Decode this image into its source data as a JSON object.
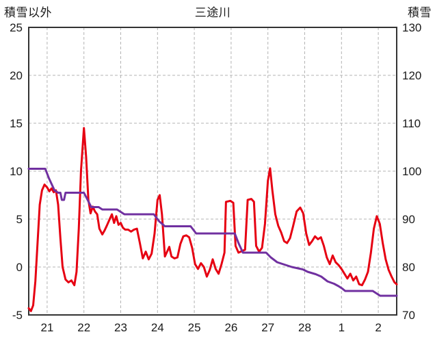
{
  "chart_data": {
    "type": "line",
    "title": "三途川",
    "x_axis": {
      "range": [
        0,
        10
      ],
      "tick_positions": [
        0.5,
        1.5,
        2.5,
        3.5,
        4.5,
        5.5,
        6.5,
        7.5,
        8.5,
        9.5
      ],
      "tick_labels": [
        "21",
        "22",
        "23",
        "24",
        "25",
        "26",
        "27",
        "28",
        "1",
        "2"
      ]
    },
    "left_axis": {
      "label": "積雪以外",
      "range": [
        -5,
        25
      ],
      "ticks": [
        -5,
        0,
        5,
        10,
        15,
        20,
        25
      ]
    },
    "right_axis": {
      "label": "積雪",
      "range": [
        70,
        130
      ],
      "ticks": [
        70,
        80,
        90,
        100,
        110,
        120,
        130
      ]
    },
    "colors": {
      "grid": "#b3b3b3",
      "frame": "#333333",
      "red_series": "#e60012",
      "purple_series": "#7030a0",
      "text": "#1a1a1a"
    },
    "grid": true,
    "legend": "none",
    "series": [
      {
        "name": "積雪以外",
        "axis": "left",
        "color": "#e60012",
        "points": [
          [
            0.0,
            -4.3
          ],
          [
            0.06,
            -4.6
          ],
          [
            0.12,
            -4.0
          ],
          [
            0.18,
            -1.5
          ],
          [
            0.24,
            2.5
          ],
          [
            0.3,
            6.5
          ],
          [
            0.36,
            8.0
          ],
          [
            0.43,
            8.6
          ],
          [
            0.5,
            8.3
          ],
          [
            0.56,
            7.9
          ],
          [
            0.62,
            8.2
          ],
          [
            0.68,
            7.8
          ],
          [
            0.74,
            8.0
          ],
          [
            0.8,
            6.5
          ],
          [
            0.86,
            3.0
          ],
          [
            0.92,
            0.0
          ],
          [
            1.0,
            -1.3
          ],
          [
            1.08,
            -1.6
          ],
          [
            1.16,
            -1.4
          ],
          [
            1.24,
            -1.9
          ],
          [
            1.3,
            -0.5
          ],
          [
            1.36,
            4.0
          ],
          [
            1.42,
            10.0
          ],
          [
            1.5,
            14.5
          ],
          [
            1.56,
            11.5
          ],
          [
            1.62,
            7.0
          ],
          [
            1.68,
            5.6
          ],
          [
            1.74,
            6.3
          ],
          [
            1.8,
            5.8
          ],
          [
            1.86,
            5.5
          ],
          [
            1.92,
            4.0
          ],
          [
            2.0,
            3.4
          ],
          [
            2.06,
            3.8
          ],
          [
            2.12,
            4.3
          ],
          [
            2.2,
            5.0
          ],
          [
            2.26,
            5.5
          ],
          [
            2.32,
            4.6
          ],
          [
            2.38,
            5.3
          ],
          [
            2.44,
            4.4
          ],
          [
            2.5,
            4.6
          ],
          [
            2.56,
            4.1
          ],
          [
            2.62,
            3.9
          ],
          [
            2.7,
            3.9
          ],
          [
            2.78,
            3.7
          ],
          [
            2.86,
            3.9
          ],
          [
            2.94,
            4.0
          ],
          [
            3.02,
            2.5
          ],
          [
            3.1,
            0.9
          ],
          [
            3.18,
            1.6
          ],
          [
            3.26,
            0.8
          ],
          [
            3.34,
            1.4
          ],
          [
            3.42,
            3.5
          ],
          [
            3.5,
            7.0
          ],
          [
            3.56,
            7.5
          ],
          [
            3.62,
            5.5
          ],
          [
            3.7,
            1.1
          ],
          [
            3.76,
            1.6
          ],
          [
            3.82,
            2.1
          ],
          [
            3.88,
            1.1
          ],
          [
            3.96,
            0.9
          ],
          [
            4.04,
            1.0
          ],
          [
            4.12,
            2.4
          ],
          [
            4.2,
            3.2
          ],
          [
            4.28,
            3.3
          ],
          [
            4.36,
            3.1
          ],
          [
            4.44,
            2.0
          ],
          [
            4.52,
            0.3
          ],
          [
            4.6,
            -0.2
          ],
          [
            4.68,
            0.4
          ],
          [
            4.76,
            0.0
          ],
          [
            4.84,
            -1.0
          ],
          [
            4.92,
            -0.3
          ],
          [
            5.0,
            0.8
          ],
          [
            5.08,
            -0.2
          ],
          [
            5.16,
            -0.7
          ],
          [
            5.24,
            0.3
          ],
          [
            5.32,
            1.5
          ],
          [
            5.36,
            6.8
          ],
          [
            5.48,
            6.9
          ],
          [
            5.56,
            6.7
          ],
          [
            5.62,
            2.2
          ],
          [
            5.7,
            1.5
          ],
          [
            5.88,
            1.8
          ],
          [
            5.95,
            7.0
          ],
          [
            6.05,
            7.1
          ],
          [
            6.12,
            6.8
          ],
          [
            6.18,
            2.2
          ],
          [
            6.26,
            1.6
          ],
          [
            6.34,
            2.0
          ],
          [
            6.42,
            4.5
          ],
          [
            6.5,
            9.0
          ],
          [
            6.56,
            10.3
          ],
          [
            6.62,
            8.0
          ],
          [
            6.7,
            5.5
          ],
          [
            6.78,
            4.3
          ],
          [
            6.86,
            3.6
          ],
          [
            6.94,
            2.7
          ],
          [
            7.02,
            2.5
          ],
          [
            7.1,
            3.0
          ],
          [
            7.18,
            4.2
          ],
          [
            7.28,
            5.8
          ],
          [
            7.38,
            6.2
          ],
          [
            7.46,
            5.6
          ],
          [
            7.54,
            3.5
          ],
          [
            7.62,
            2.3
          ],
          [
            7.7,
            2.7
          ],
          [
            7.78,
            3.2
          ],
          [
            7.86,
            2.9
          ],
          [
            7.94,
            3.1
          ],
          [
            8.02,
            2.2
          ],
          [
            8.1,
            1.0
          ],
          [
            8.18,
            0.3
          ],
          [
            8.26,
            1.2
          ],
          [
            8.34,
            0.5
          ],
          [
            8.42,
            0.2
          ],
          [
            8.5,
            -0.2
          ],
          [
            8.58,
            -0.7
          ],
          [
            8.66,
            -1.2
          ],
          [
            8.74,
            -0.7
          ],
          [
            8.82,
            -1.4
          ],
          [
            8.9,
            -1.0
          ],
          [
            8.98,
            -1.8
          ],
          [
            9.06,
            -1.9
          ],
          [
            9.14,
            -1.3
          ],
          [
            9.22,
            -0.5
          ],
          [
            9.3,
            1.5
          ],
          [
            9.38,
            4.0
          ],
          [
            9.46,
            5.3
          ],
          [
            9.54,
            4.5
          ],
          [
            9.62,
            2.5
          ],
          [
            9.7,
            0.8
          ],
          [
            9.78,
            -0.3
          ],
          [
            9.86,
            -1.0
          ],
          [
            9.94,
            -1.6
          ],
          [
            10.0,
            -1.8
          ]
        ]
      },
      {
        "name": "積雪",
        "axis": "right",
        "color": "#7030a0",
        "points": [
          [
            0.0,
            100.5
          ],
          [
            0.45,
            100.5
          ],
          [
            0.55,
            98.5
          ],
          [
            0.7,
            96.0
          ],
          [
            0.8,
            95.5
          ],
          [
            0.86,
            95.5
          ],
          [
            0.9,
            94.0
          ],
          [
            0.96,
            94.0
          ],
          [
            1.0,
            95.5
          ],
          [
            1.5,
            95.5
          ],
          [
            1.6,
            94.0
          ],
          [
            1.7,
            92.5
          ],
          [
            1.9,
            92.5
          ],
          [
            2.0,
            92.0
          ],
          [
            2.4,
            92.0
          ],
          [
            2.5,
            91.5
          ],
          [
            2.6,
            91.0
          ],
          [
            3.4,
            91.0
          ],
          [
            3.55,
            89.5
          ],
          [
            3.7,
            88.5
          ],
          [
            4.4,
            88.5
          ],
          [
            4.55,
            87.0
          ],
          [
            5.6,
            87.0
          ],
          [
            5.7,
            85.0
          ],
          [
            5.82,
            83.0
          ],
          [
            6.45,
            83.0
          ],
          [
            6.58,
            82.0
          ],
          [
            6.75,
            81.0
          ],
          [
            6.95,
            80.5
          ],
          [
            7.15,
            80.0
          ],
          [
            7.45,
            79.5
          ],
          [
            7.58,
            79.0
          ],
          [
            7.8,
            78.5
          ],
          [
            7.95,
            78.0
          ],
          [
            8.12,
            77.0
          ],
          [
            8.3,
            76.5
          ],
          [
            8.42,
            76.0
          ],
          [
            8.52,
            75.5
          ],
          [
            8.6,
            75.0
          ],
          [
            9.35,
            75.0
          ],
          [
            9.45,
            74.5
          ],
          [
            9.55,
            74.0
          ],
          [
            10.0,
            74.0
          ]
        ]
      }
    ]
  }
}
